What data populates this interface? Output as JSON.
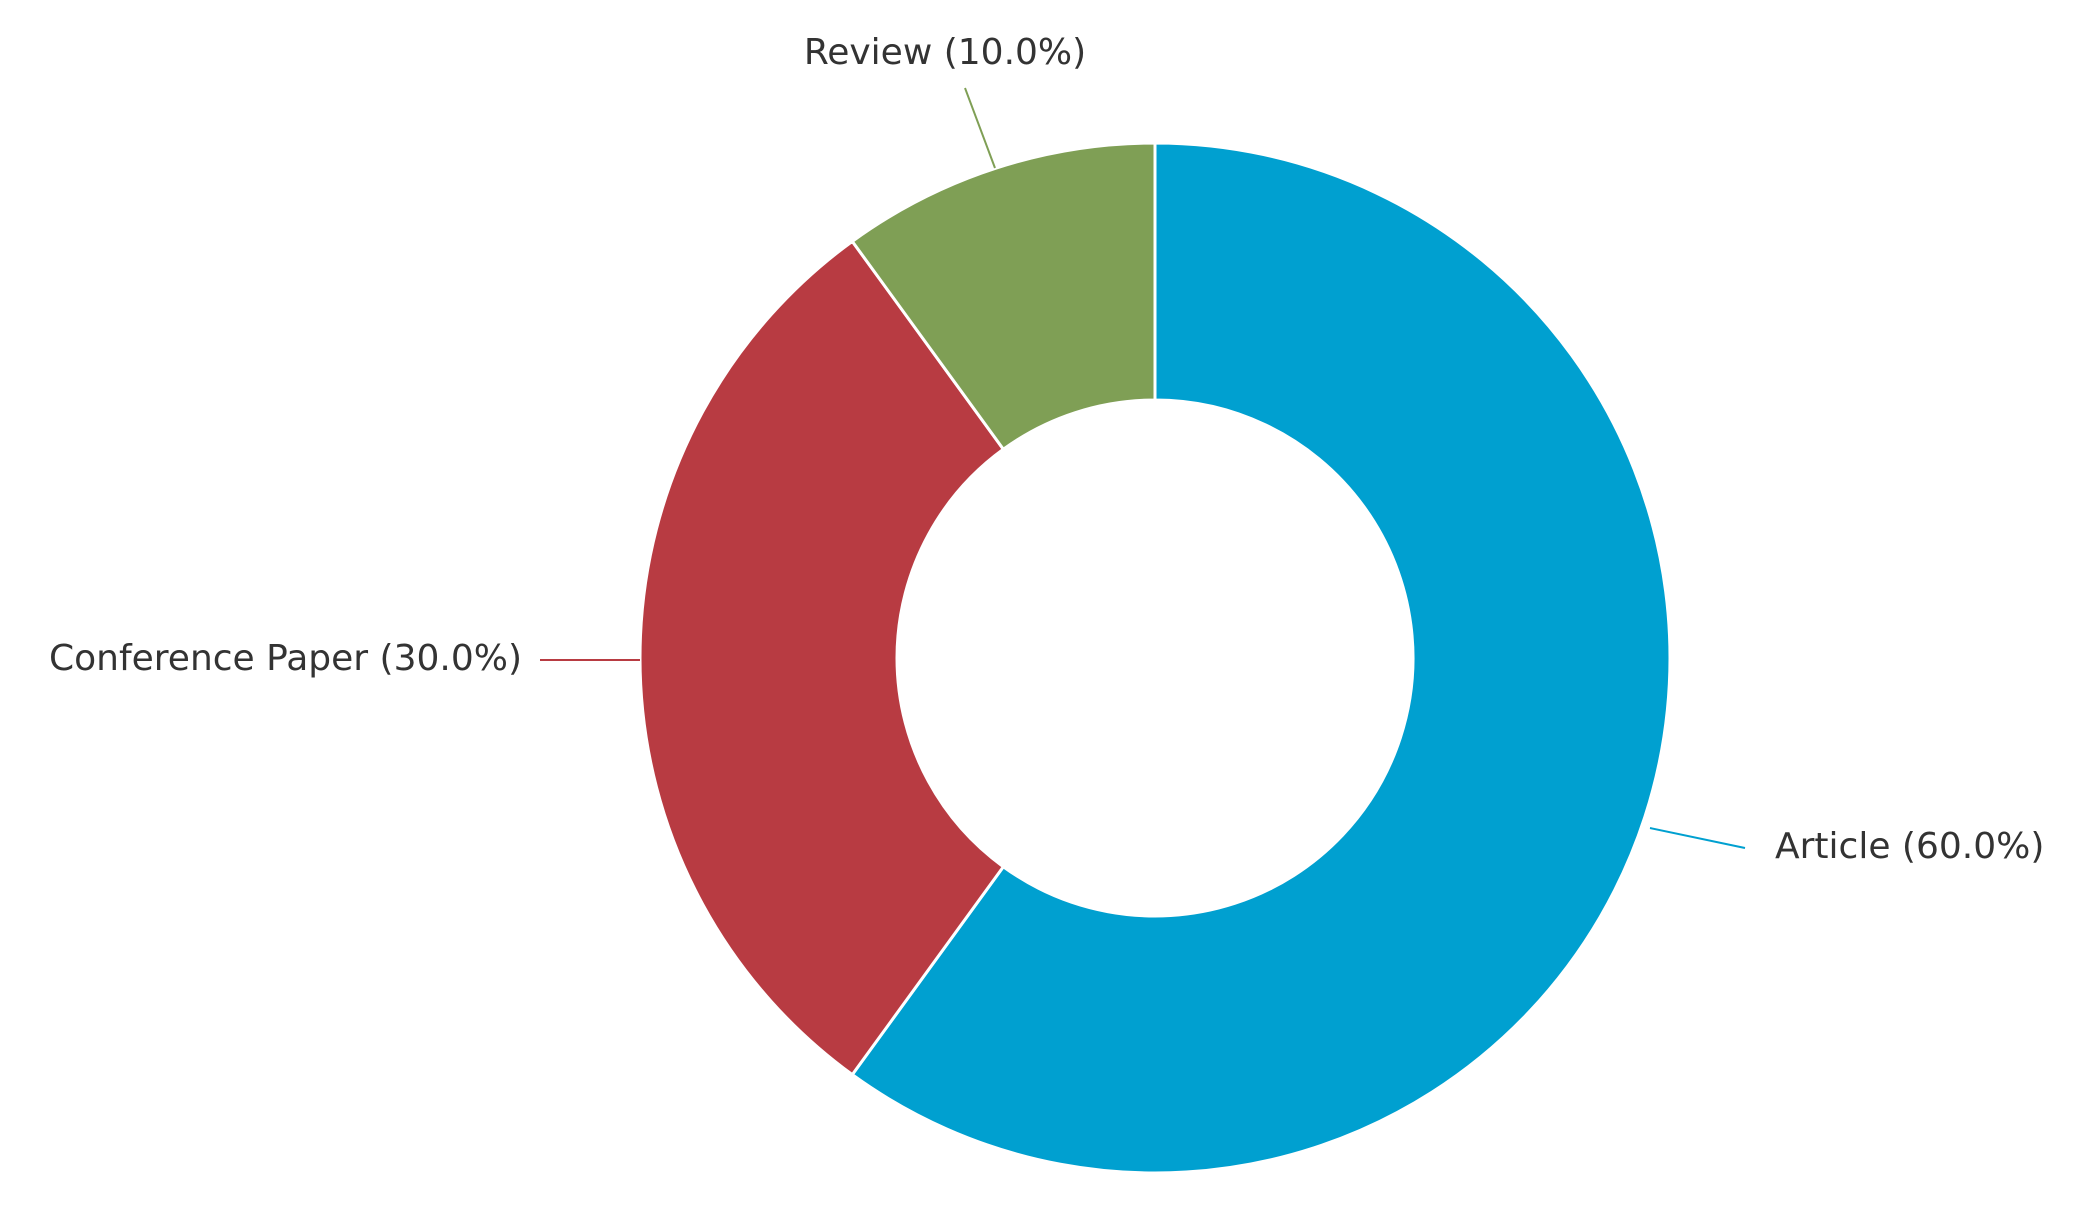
{
  "chart_data": {
    "type": "pie",
    "style": "donut",
    "slices": [
      {
        "label": "Article",
        "value": 60.0,
        "display": "Article (60.0%)",
        "color": "#00a0d0"
      },
      {
        "label": "Conference Paper",
        "value": 30.0,
        "display": "Conference Paper (30.0%)",
        "color": "#b83b42"
      },
      {
        "label": "Review",
        "value": 10.0,
        "display": "Review (10.0%)",
        "color": "#7f9f55"
      }
    ],
    "start": "top",
    "direction": "clockwise",
    "legend": "none"
  }
}
